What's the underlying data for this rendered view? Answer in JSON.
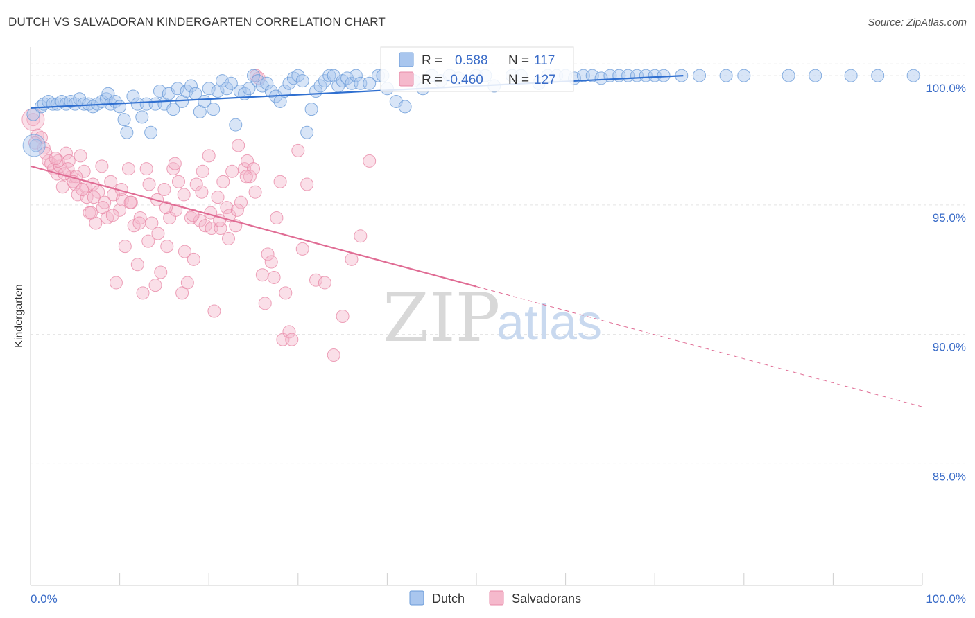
{
  "header": {
    "title": "DUTCH VS SALVADORAN KINDERGARTEN CORRELATION CHART",
    "source": "Source: ZipAtlas.com"
  },
  "colors": {
    "dutch_fill": "#a9c6ee",
    "dutch_stroke": "#6a9bd8",
    "dutch_line": "#2f6fd0",
    "salv_fill": "#f5b9cc",
    "salv_stroke": "#e88aa8",
    "salv_line": "#e06c94",
    "tick_text": "#3a6cc8",
    "grid": "#e3e3e3"
  },
  "watermark": {
    "zip": "ZIP",
    "atlas": "atlas"
  },
  "stats": [
    {
      "r_label": "R =",
      "r_value": "0.588",
      "n_label": "N =",
      "n_value": "117"
    },
    {
      "r_label": "R =",
      "r_value": "-0.460",
      "n_label": "N =",
      "n_value": "127"
    }
  ],
  "chart_data": {
    "type": "scatter",
    "title": "DUTCH VS SALVADORAN KINDERGARTEN CORRELATION CHART",
    "xlabel": "",
    "ylabel": "Kindergarten",
    "xlim": [
      0,
      100
    ],
    "ylim": [
      80.3,
      101.1
    ],
    "x_tick_labels": [
      "0.0%",
      "100.0%"
    ],
    "y_ticks": [
      85,
      90,
      95,
      100
    ],
    "y_tick_labels": [
      "85.0%",
      "90.0%",
      "95.0%",
      "100.0%"
    ],
    "grid": true,
    "legend_position": "bottom-center",
    "series": [
      {
        "name": "Dutch",
        "R": 0.588,
        "N": 117,
        "trend": {
          "x": [
            0,
            73.2
          ],
          "y": [
            98.75,
            100.0
          ]
        },
        "points": [
          [
            0.3,
            98.5
          ],
          [
            0.6,
            97.3
          ],
          [
            1.2,
            98.8
          ],
          [
            1.5,
            98.9
          ],
          [
            2,
            99
          ],
          [
            2.5,
            98.9
          ],
          [
            3,
            98.9
          ],
          [
            3.5,
            99
          ],
          [
            4,
            98.9
          ],
          [
            4.5,
            99
          ],
          [
            5,
            98.9
          ],
          [
            5.5,
            99.1
          ],
          [
            6,
            98.9
          ],
          [
            6.5,
            98.9
          ],
          [
            7,
            98.8
          ],
          [
            7.5,
            98.9
          ],
          [
            8,
            99
          ],
          [
            8.5,
            99.1
          ],
          [
            8.7,
            99.3
          ],
          [
            9,
            98.9
          ],
          [
            9.5,
            99
          ],
          [
            10,
            98.8
          ],
          [
            10.5,
            98.3
          ],
          [
            10.8,
            97.8
          ],
          [
            11.5,
            99.2
          ],
          [
            12,
            98.9
          ],
          [
            12.5,
            98.4
          ],
          [
            13,
            98.9
          ],
          [
            13.5,
            97.8
          ],
          [
            14,
            98.9
          ],
          [
            14.5,
            99.4
          ],
          [
            15,
            98.9
          ],
          [
            15.5,
            99.3
          ],
          [
            16,
            98.7
          ],
          [
            16.5,
            99.5
          ],
          [
            17,
            99
          ],
          [
            17.5,
            99.4
          ],
          [
            18,
            99.6
          ],
          [
            18.5,
            99.3
          ],
          [
            19,
            98.6
          ],
          [
            19.5,
            99
          ],
          [
            20,
            99.5
          ],
          [
            20.5,
            98.7
          ],
          [
            21,
            99.4
          ],
          [
            21.5,
            99.8
          ],
          [
            22,
            99.5
          ],
          [
            22.5,
            99.7
          ],
          [
            23,
            98.1
          ],
          [
            23.5,
            99.4
          ],
          [
            24,
            99.3
          ],
          [
            24.5,
            99.5
          ],
          [
            25,
            100
          ],
          [
            25.5,
            99.8
          ],
          [
            26,
            99.6
          ],
          [
            26.5,
            99.7
          ],
          [
            27,
            99.4
          ],
          [
            27.5,
            99.2
          ],
          [
            28,
            99
          ],
          [
            28.5,
            99.4
          ],
          [
            29,
            99.7
          ],
          [
            29.5,
            99.9
          ],
          [
            30,
            100
          ],
          [
            30.5,
            99.8
          ],
          [
            31,
            97.8
          ],
          [
            31.5,
            98.7
          ],
          [
            32,
            99.4
          ],
          [
            32.5,
            99.6
          ],
          [
            33,
            99.8
          ],
          [
            33.5,
            100
          ],
          [
            34,
            100
          ],
          [
            34.5,
            99.6
          ],
          [
            35,
            99.8
          ],
          [
            35.5,
            99.9
          ],
          [
            36,
            99.7
          ],
          [
            36.5,
            100
          ],
          [
            37,
            99.7
          ],
          [
            38,
            99.7
          ],
          [
            39,
            100
          ],
          [
            39.5,
            100
          ],
          [
            40,
            99.5
          ],
          [
            41,
            99
          ],
          [
            42,
            98.8
          ],
          [
            43,
            99.8
          ],
          [
            44,
            99.5
          ],
          [
            45,
            100
          ],
          [
            46,
            99.8
          ],
          [
            47,
            100
          ],
          [
            48,
            99.9
          ],
          [
            50,
            100
          ],
          [
            51,
            100
          ],
          [
            52,
            99.6
          ],
          [
            54,
            100
          ],
          [
            55,
            100
          ],
          [
            57,
            99.7
          ],
          [
            58,
            100
          ],
          [
            59,
            100
          ],
          [
            60,
            100
          ],
          [
            61,
            99.9
          ],
          [
            62,
            100
          ],
          [
            63,
            100
          ],
          [
            64,
            99.9
          ],
          [
            65,
            100
          ],
          [
            66,
            100
          ],
          [
            67,
            100
          ],
          [
            68,
            100
          ],
          [
            69,
            100
          ],
          [
            70,
            100
          ],
          [
            71,
            100
          ],
          [
            73,
            100
          ],
          [
            75,
            100
          ],
          [
            78,
            100
          ],
          [
            80,
            100
          ],
          [
            85,
            100
          ],
          [
            88,
            100
          ],
          [
            92,
            100
          ],
          [
            95,
            100
          ],
          [
            99,
            100
          ]
        ]
      },
      {
        "name": "Salvadorans",
        "R": -0.46,
        "N": 127,
        "trend": {
          "x": [
            0,
            100
          ],
          "y": [
            96.5,
            87.2
          ],
          "solid_until_x": 50
        },
        "points": [
          [
            0.3,
            98.3
          ],
          [
            0.8,
            97.7
          ],
          [
            1.2,
            97.6
          ],
          [
            1.5,
            97.2
          ],
          [
            2,
            96.7
          ],
          [
            2.3,
            96.6
          ],
          [
            2.6,
            96.4
          ],
          [
            3,
            96.2
          ],
          [
            3.3,
            96.5
          ],
          [
            3.6,
            95.7
          ],
          [
            4,
            97
          ],
          [
            4.3,
            96.7
          ],
          [
            4.6,
            96.1
          ],
          [
            5,
            95.8
          ],
          [
            5.3,
            95.4
          ],
          [
            5.6,
            96.9
          ],
          [
            6,
            96.3
          ],
          [
            6.3,
            95.3
          ],
          [
            6.6,
            94.7
          ],
          [
            7,
            95.8
          ],
          [
            7.3,
            94.3
          ],
          [
            7.6,
            95.5
          ],
          [
            8,
            96.5
          ],
          [
            8.3,
            95.1
          ],
          [
            8.6,
            94.5
          ],
          [
            9,
            95.9
          ],
          [
            9.3,
            95.4
          ],
          [
            9.6,
            92
          ],
          [
            10,
            94.8
          ],
          [
            10.3,
            95.2
          ],
          [
            10.6,
            93.4
          ],
          [
            11,
            96.4
          ],
          [
            11.3,
            95.1
          ],
          [
            11.6,
            94.2
          ],
          [
            12,
            92.7
          ],
          [
            12.3,
            94.5
          ],
          [
            12.6,
            91.6
          ],
          [
            13,
            96.4
          ],
          [
            13.3,
            95.8
          ],
          [
            13.6,
            94.3
          ],
          [
            14,
            91.9
          ],
          [
            14.3,
            93.9
          ],
          [
            14.6,
            92.4
          ],
          [
            15,
            95.6
          ],
          [
            15.3,
            93.4
          ],
          [
            15.6,
            94.5
          ],
          [
            16,
            96.4
          ],
          [
            16.3,
            94.8
          ],
          [
            16.6,
            95.9
          ],
          [
            17,
            91.6
          ],
          [
            17.3,
            93.2
          ],
          [
            17.6,
            92
          ],
          [
            18,
            94.5
          ],
          [
            18.3,
            92.9
          ],
          [
            18.6,
            95.8
          ],
          [
            19,
            94.4
          ],
          [
            19.3,
            96.3
          ],
          [
            19.6,
            94.2
          ],
          [
            20,
            96.9
          ],
          [
            20.3,
            94.1
          ],
          [
            20.6,
            90.9
          ],
          [
            21,
            95.3
          ],
          [
            21.3,
            94.1
          ],
          [
            21.6,
            95.9
          ],
          [
            22,
            94.9
          ],
          [
            22.3,
            94.6
          ],
          [
            22.6,
            96.3
          ],
          [
            23,
            94.2
          ],
          [
            23.3,
            97.3
          ],
          [
            23.6,
            95.1
          ],
          [
            24,
            96.4
          ],
          [
            24.3,
            96.7
          ],
          [
            24.6,
            96.1
          ],
          [
            25,
            96.4
          ],
          [
            25.3,
            100
          ],
          [
            25.6,
            99.9
          ],
          [
            26,
            92.3
          ],
          [
            26.3,
            91.2
          ],
          [
            26.6,
            93.1
          ],
          [
            27,
            92.8
          ],
          [
            27.3,
            92.2
          ],
          [
            27.6,
            94.5
          ],
          [
            28,
            95.9
          ],
          [
            28.3,
            89.8
          ],
          [
            28.6,
            91.6
          ],
          [
            29,
            90.1
          ],
          [
            29.3,
            89.8
          ],
          [
            30,
            97.1
          ],
          [
            30.5,
            93.3
          ],
          [
            31,
            95.8
          ],
          [
            32,
            92.1
          ],
          [
            33,
            92
          ],
          [
            34,
            89.2
          ],
          [
            35,
            90.7
          ],
          [
            36,
            92.9
          ],
          [
            37,
            93.8
          ],
          [
            38,
            96.7
          ],
          [
            3.1,
            96.7
          ],
          [
            4.2,
            96.4
          ],
          [
            5.1,
            96.1
          ],
          [
            6.2,
            95.7
          ],
          [
            7.1,
            95.3
          ],
          [
            8.1,
            94.9
          ],
          [
            9.2,
            94.6
          ],
          [
            10.2,
            95.6
          ],
          [
            11.2,
            95.1
          ],
          [
            12.2,
            94.3
          ],
          [
            13.2,
            93.6
          ],
          [
            14.2,
            95.2
          ],
          [
            15.2,
            94.9
          ],
          [
            16.2,
            96.6
          ],
          [
            17.2,
            95.4
          ],
          [
            18.2,
            94.6
          ],
          [
            19.2,
            95.5
          ],
          [
            20.2,
            94.7
          ],
          [
            21.2,
            94.4
          ],
          [
            22.2,
            93.7
          ],
          [
            23.2,
            94.8
          ],
          [
            24.2,
            96.1
          ],
          [
            25.2,
            95.5
          ],
          [
            0.5,
            97.4
          ],
          [
            1.7,
            97
          ],
          [
            2.8,
            96.8
          ],
          [
            3.8,
            96.2
          ],
          [
            4.8,
            95.9
          ],
          [
            5.8,
            95.6
          ],
          [
            6.8,
            94.7
          ]
        ]
      }
    ]
  }
}
